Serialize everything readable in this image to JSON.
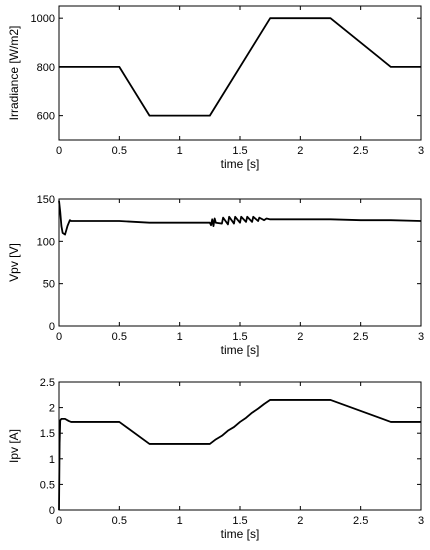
{
  "chart_data": [
    {
      "type": "line",
      "xlabel": "time [s]",
      "ylabel": "Irradiance [W/m2]",
      "xlim": [
        0,
        3
      ],
      "ylim": [
        500,
        1050
      ],
      "xticks": [
        0,
        0.5,
        1,
        1.5,
        2,
        2.5,
        3
      ],
      "yticks": [
        600,
        800,
        1000
      ],
      "grid": false,
      "series": [
        {
          "x": [
            0,
            0.5,
            0.75,
            1.25,
            1.75,
            2.25,
            2.75,
            3
          ],
          "y": [
            800,
            800,
            600,
            600,
            1000,
            1000,
            800,
            800
          ]
        }
      ]
    },
    {
      "type": "line",
      "xlabel": "time [s]",
      "ylabel": "Vpv [V]",
      "xlim": [
        0,
        3
      ],
      "ylim": [
        0,
        150
      ],
      "xticks": [
        0,
        0.5,
        1,
        1.5,
        2,
        2.5,
        3
      ],
      "yticks": [
        0,
        50,
        100,
        150
      ],
      "grid": false,
      "series": [
        {
          "x": [
            0,
            0.01,
            0.02,
            0.03,
            0.05,
            0.07,
            0.09,
            0.1,
            0.2,
            0.5,
            0.75,
            1.0,
            1.25,
            1.26,
            1.27,
            1.28,
            1.29,
            1.3,
            1.35,
            1.36,
            1.4,
            1.41,
            1.45,
            1.46,
            1.5,
            1.51,
            1.55,
            1.56,
            1.6,
            1.61,
            1.65,
            1.66,
            1.7,
            1.72,
            1.75,
            2.0,
            2.25,
            2.5,
            2.75,
            3.0
          ],
          "y": [
            148,
            135,
            118,
            110,
            108,
            118,
            125,
            124,
            124,
            124,
            122,
            122,
            122,
            119,
            126,
            118,
            127,
            122,
            121,
            128,
            120,
            129,
            121,
            129,
            122,
            129,
            123,
            129,
            123,
            129,
            124,
            128,
            125,
            127,
            126,
            126,
            126,
            125,
            125,
            124
          ]
        }
      ]
    },
    {
      "type": "line",
      "xlabel": "time [s]",
      "ylabel": "Ipv [A]",
      "xlim": [
        0,
        3
      ],
      "ylim": [
        0,
        2.5
      ],
      "xticks": [
        0,
        0.5,
        1,
        1.5,
        2,
        2.5,
        3
      ],
      "yticks": [
        0,
        0.5,
        1,
        1.5,
        2,
        2.5
      ],
      "grid": false,
      "series": [
        {
          "x": [
            0,
            0.005,
            0.01,
            0.02,
            0.03,
            0.05,
            0.08,
            0.1,
            0.5,
            0.75,
            1.25,
            1.3,
            1.35,
            1.4,
            1.45,
            1.5,
            1.55,
            1.6,
            1.65,
            1.7,
            1.75,
            2.25,
            2.75,
            3.0
          ],
          "y": [
            0,
            1.3,
            1.75,
            1.78,
            1.78,
            1.78,
            1.74,
            1.72,
            1.72,
            1.29,
            1.29,
            1.38,
            1.45,
            1.55,
            1.62,
            1.72,
            1.8,
            1.9,
            1.98,
            2.07,
            2.15,
            2.15,
            1.72,
            1.72
          ]
        }
      ]
    }
  ]
}
